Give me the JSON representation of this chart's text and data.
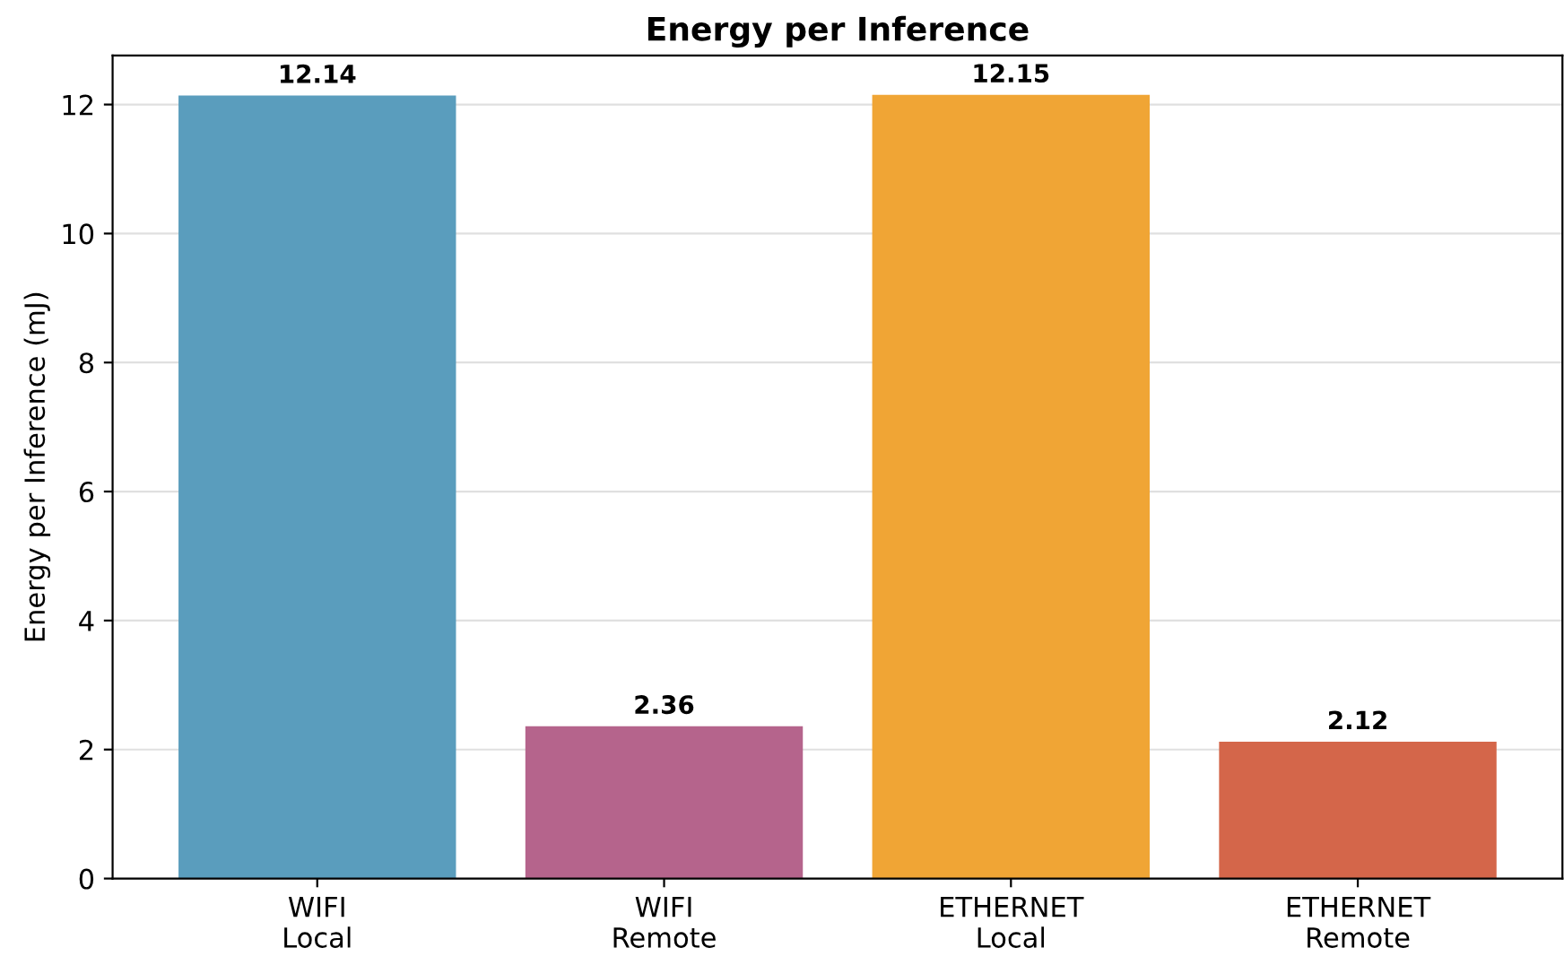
{
  "chart_data": {
    "type": "bar",
    "title": "Energy per Inference",
    "ylabel": "Energy per Inference (mJ)",
    "categories": [
      "WIFI\nLocal",
      "WIFI\nRemote",
      "ETHERNET\nLocal",
      "ETHERNET\nRemote"
    ],
    "values": [
      12.14,
      2.36,
      12.15,
      2.12
    ],
    "colors": [
      "#5a9dbd",
      "#b5648c",
      "#f0a535",
      "#d4664a"
    ],
    "ylim": [
      0,
      12.76
    ],
    "yticks": [
      0,
      2,
      4,
      6,
      8,
      10,
      12
    ],
    "grid": "y",
    "data_labels": true,
    "legend": false
  }
}
